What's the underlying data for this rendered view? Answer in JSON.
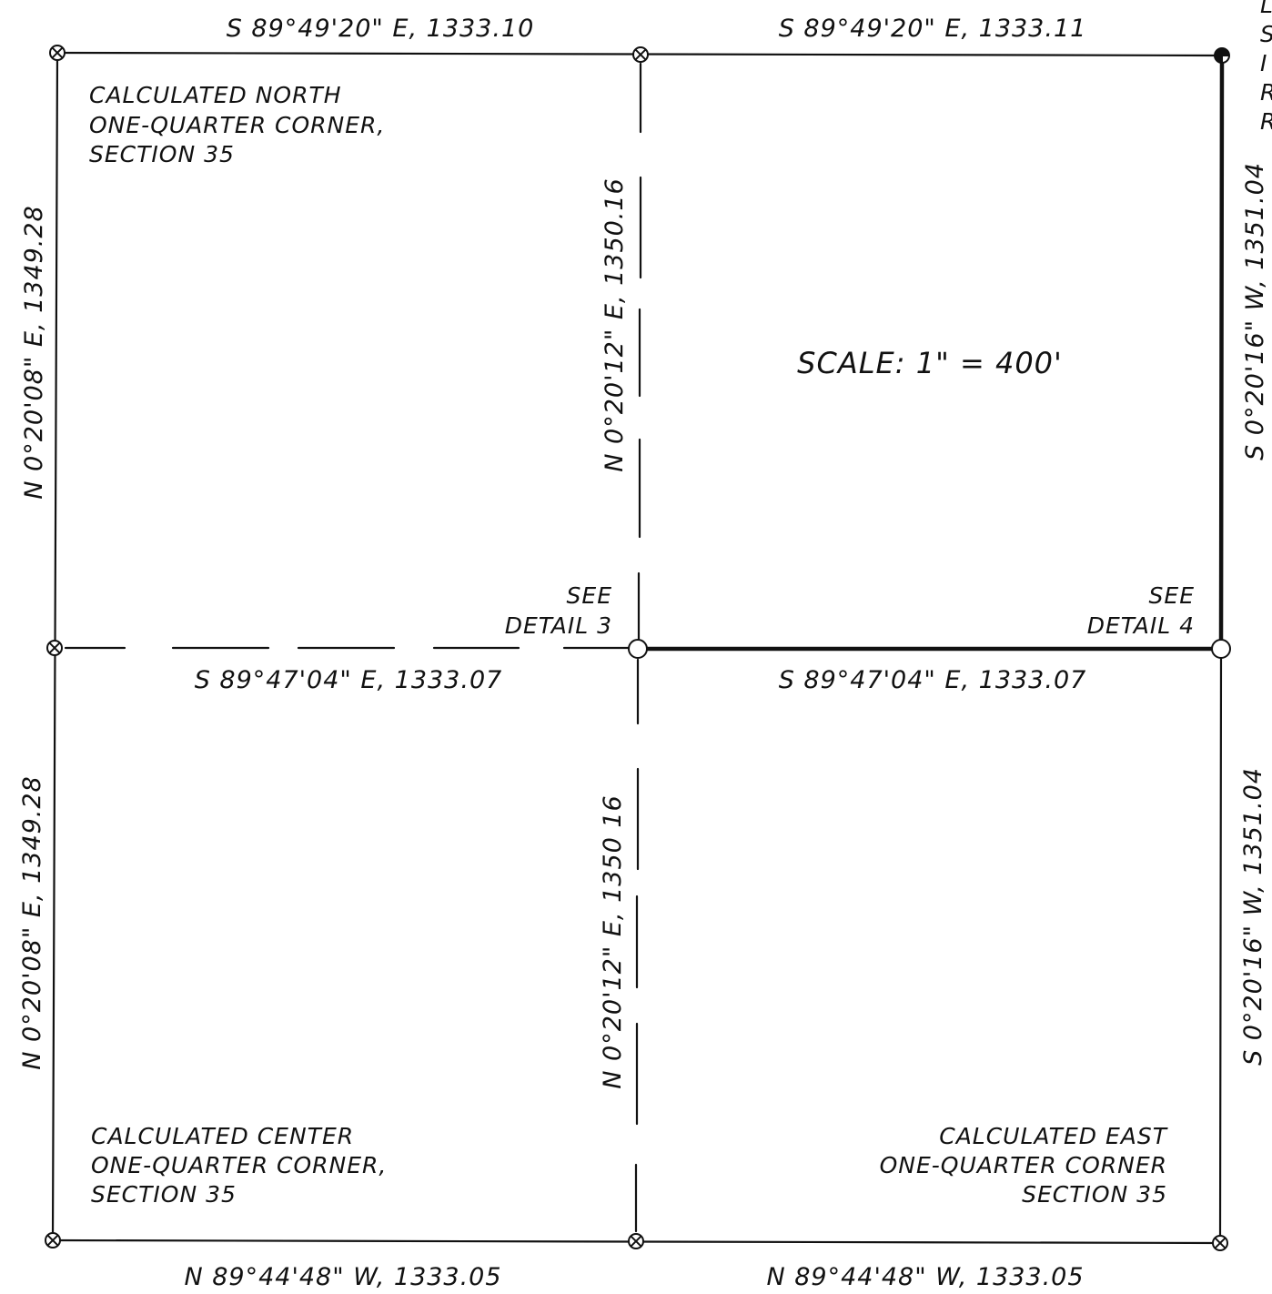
{
  "plat": {
    "scale": "SCALE: 1\" = 400'",
    "bearings": {
      "top_left": "S 89°49'20\" E, 1333.10",
      "top_right": "S 89°49'20\" E, 1333.11",
      "mid_left": "S 89°47'04\" E, 1333.07",
      "mid_right": "S 89°47'04\" E, 1333.07",
      "bottom_left": "N 89°44'48\" W, 1333.05",
      "bottom_right": "N 89°44'48\" W, 1333.05",
      "west_upper": "N 0°20'08\" E, 1349.28",
      "west_lower": "N 0°20'08\" E, 1349.28",
      "center_upper": "N 0°20'12\" E, 1350.16",
      "center_lower": "N 0°20'12\" E, 1350 16",
      "east_upper": "S 0°20'16\" W, 1351.04",
      "east_lower": "S 0°20'16\" W, 1351.04"
    },
    "notes": {
      "north_quarter": [
        "CALCULATED NORTH",
        "ONE-QUARTER CORNER,",
        "SECTION 35"
      ],
      "center_quarter": [
        "CALCULATED CENTER",
        "ONE-QUARTER CORNER,",
        "SECTION 35"
      ],
      "east_quarter": [
        "CALCULATED EAST",
        "ONE-QUARTER CORNER",
        "SECTION 35"
      ],
      "detail_3": [
        "SEE",
        "DETAIL 3"
      ],
      "detail_4": [
        "SEE",
        "DETAIL 4"
      ],
      "cropped_edge": [
        "L",
        "S",
        "I",
        "R",
        "R"
      ]
    }
  }
}
